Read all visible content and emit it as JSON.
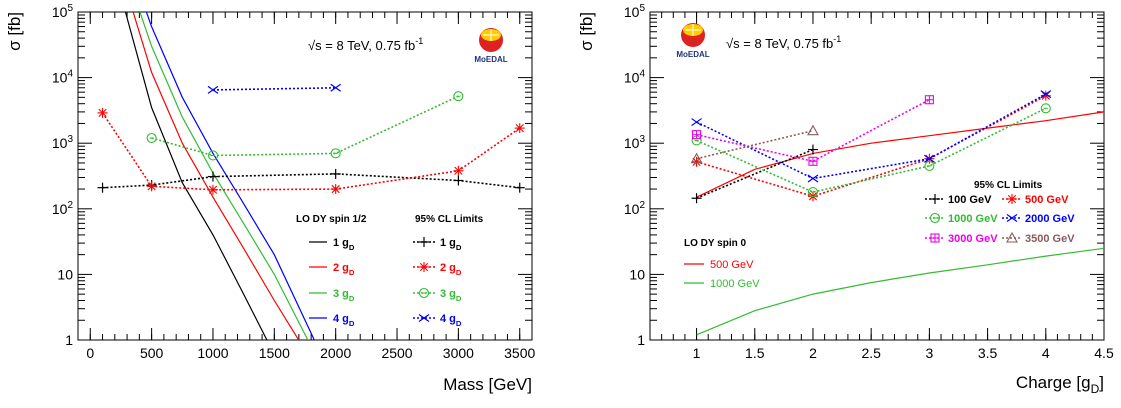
{
  "chart_data": [
    {
      "type": "line",
      "yscale": "log",
      "xlabel": "Mass [GeV]",
      "ylabel": "σ [fb]",
      "xlim": [
        -100,
        3600
      ],
      "ylim": [
        1,
        100000
      ],
      "xticks": [
        "0",
        "500",
        "1000",
        "1500",
        "2000",
        "2500",
        "3000",
        "3500"
      ],
      "yticks": [
        "1",
        "10",
        "10²",
        "10³",
        "10⁴",
        "10⁵"
      ],
      "energy_sqrt": "√s",
      "energy_text": " = 8 TeV, 0.75 fb",
      "energy_sup": "-1",
      "logo_text": "MoEDAL",
      "legend_model_title": "LO DY spin 1/2",
      "legend_limit_title": "95% CL Limits",
      "model_series": [
        {
          "name": "1 g",
          "sub": "D",
          "color": "#000000",
          "x": [
            250,
            500,
            750,
            1000,
            1250,
            1500
          ],
          "y": [
            180000,
            3500,
            250,
            40,
            5,
            0.6
          ]
        },
        {
          "name": "2 g",
          "sub": "D",
          "color": "#ff0000",
          "x": [
            300,
            500,
            750,
            1000,
            1250,
            1500,
            1750
          ],
          "y": [
            200000,
            12000,
            1000,
            150,
            25,
            4,
            0.7
          ]
        },
        {
          "name": "3 g",
          "sub": "D",
          "color": "#33bb33",
          "x": [
            350,
            500,
            750,
            1000,
            1250,
            1500,
            1800
          ],
          "y": [
            200000,
            30000,
            2500,
            350,
            60,
            10,
            0.8
          ]
        },
        {
          "name": "4 g",
          "sub": "D",
          "color": "#0000ff",
          "x": [
            400,
            500,
            750,
            1000,
            1250,
            1500,
            1850
          ],
          "y": [
            200000,
            60000,
            5000,
            700,
            120,
            20,
            0.8
          ]
        }
      ],
      "limit_series": [
        {
          "name": "1 g",
          "sub": "D",
          "color": "#000000",
          "marker": "plus",
          "x": [
            100,
            500,
            1000,
            2000,
            3000,
            3500
          ],
          "y": [
            210,
            230,
            310,
            340,
            270,
            210
          ]
        },
        {
          "name": "2 g",
          "sub": "D",
          "color": "#ff0000",
          "marker": "star",
          "x": [
            100,
            500,
            1000,
            2000,
            3000,
            3500
          ],
          "y": [
            2900,
            220,
            195,
            200,
            380,
            1700
          ]
        },
        {
          "name": "3 g",
          "sub": "D",
          "color": "#33bb33",
          "marker": "circle",
          "x": [
            500,
            1000,
            2000,
            3000
          ],
          "y": [
            1200,
            650,
            700,
            5200
          ]
        },
        {
          "name": "4 g",
          "sub": "D",
          "color": "#0000ff",
          "marker": "cross",
          "x": [
            1000,
            2000
          ],
          "y": [
            6500,
            7000
          ]
        }
      ]
    },
    {
      "type": "line",
      "yscale": "log",
      "xlabel": "Charge [g",
      "xlabel_sub": "D",
      "xlabel_end": "]",
      "ylabel": "σ [fb]",
      "xlim": [
        0.6,
        4.5
      ],
      "ylim": [
        1,
        100000
      ],
      "xticks": [
        "1",
        "1.5",
        "2",
        "2.5",
        "3",
        "3.5",
        "4",
        "4.5"
      ],
      "yticks": [
        "1",
        "10",
        "10²",
        "10³",
        "10⁴",
        "10⁵"
      ],
      "energy_sqrt": "√s",
      "energy_text": " = 8 TeV, 0.75 fb",
      "energy_sup": "-1",
      "logo_text": "MoEDAL",
      "legend_model_title": "LO DY spin 0",
      "legend_limit_title": "95% CL Limits",
      "model_series": [
        {
          "name": "500 GeV",
          "color": "#ff0000",
          "x": [
            1,
            1.5,
            2,
            2.5,
            3,
            3.5,
            4,
            4.5
          ],
          "y": [
            150,
            400,
            700,
            1000,
            1300,
            1700,
            2200,
            3000
          ]
        },
        {
          "name": "1000 GeV",
          "color": "#33bb33",
          "x": [
            1,
            1.5,
            2,
            2.5,
            3,
            3.5,
            4,
            4.5
          ],
          "y": [
            1.2,
            2.8,
            5,
            7.5,
            10.5,
            14,
            19,
            25
          ]
        }
      ],
      "limit_series": [
        {
          "name": "100 GeV",
          "color": "#000000",
          "marker": "plus",
          "x": [
            1,
            2
          ],
          "y": [
            145,
            800
          ]
        },
        {
          "name": "500 GeV",
          "color": "#ff0000",
          "marker": "star",
          "x": [
            1,
            2,
            3,
            4
          ],
          "y": [
            520,
            155,
            580,
            5300
          ]
        },
        {
          "name": "1000 GeV",
          "color": "#33bb33",
          "marker": "circle",
          "x": [
            1,
            2,
            3,
            4
          ],
          "y": [
            1100,
            180,
            450,
            3400
          ]
        },
        {
          "name": "2000 GeV",
          "color": "#0000ff",
          "marker": "cross",
          "x": [
            1,
            2,
            3,
            4
          ],
          "y": [
            2100,
            290,
            580,
            5600
          ]
        },
        {
          "name": "3000 GeV",
          "color": "#ee00ee",
          "marker": "boxplus",
          "x": [
            1,
            2,
            3
          ],
          "y": [
            1350,
            530,
            4600
          ]
        },
        {
          "name": "3500 GeV",
          "color": "#8b5a5a",
          "marker": "triangle",
          "x": [
            1,
            2
          ],
          "y": [
            580,
            1550
          ]
        }
      ]
    }
  ]
}
